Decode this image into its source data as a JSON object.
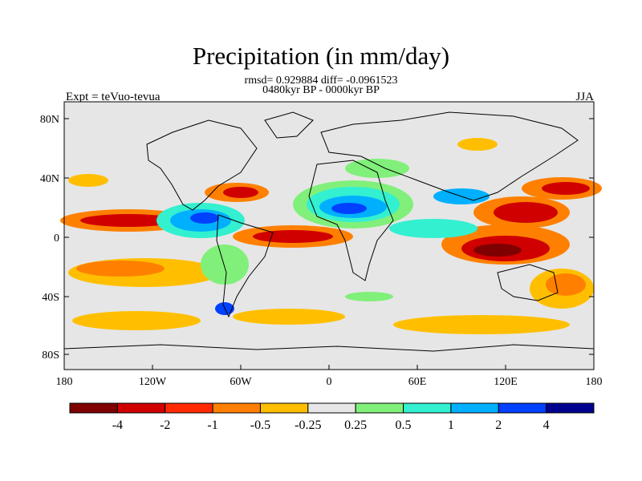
{
  "header": {
    "title": "Precipitation (in mm/day)",
    "stats_line": "rmsd= 0.929884 diff= -0.0961523",
    "period_line": "0480kyr BP - 0000kyr BP",
    "left_label": "Expt = teVuo-tevua",
    "right_label": "JJA"
  },
  "map": {
    "lat_ticks": [
      "80N",
      "40N",
      "0",
      "40S",
      "80S"
    ],
    "lon_ticks": [
      "180",
      "120W",
      "60W",
      "0",
      "60E",
      "120E",
      "180"
    ],
    "background_color": "#e6e6e6"
  },
  "colorbar": {
    "labels": [
      "-4",
      "-2",
      "-1",
      "-0.5",
      "-0.25",
      "0.25",
      "0.5",
      "1",
      "2",
      "4"
    ],
    "colors": [
      "#7f0000",
      "#d00000",
      "#ff2a00",
      "#ff8000",
      "#ffbf00",
      "#e6e6e6",
      "#80f07a",
      "#33f0d0",
      "#00b0ff",
      "#0040ff",
      "#000090"
    ]
  }
}
